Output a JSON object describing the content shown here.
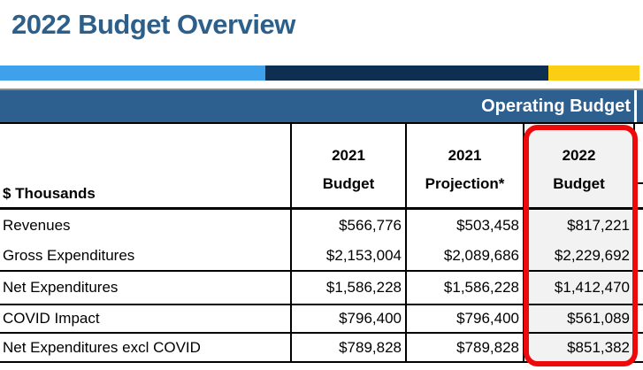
{
  "page": {
    "title": "2022 Budget Overview"
  },
  "colors": {
    "title_blue": "#2d5f8b",
    "section_bar_blue": "#2d608f",
    "stripe_light_blue": "#3fa1eb",
    "stripe_navy": "#0f2f52",
    "stripe_yellow": "#f9ce13",
    "highlight_red": "#ee0a0a",
    "highlight_column_bg": "#f2f2f2"
  },
  "table": {
    "section_header": "Operating Budget",
    "unit_label": "$ Thousands",
    "columns": [
      {
        "line1": "2021",
        "line2": "Budget"
      },
      {
        "line1": "2021",
        "line2": "Projection*"
      },
      {
        "line1": "2022",
        "line2": "Budget",
        "highlighted": true
      }
    ],
    "rows": [
      {
        "label": "Revenues",
        "values": [
          "$566,776",
          "$503,458",
          "$817,221"
        ]
      },
      {
        "label": "Gross Expenditures",
        "values": [
          "$2,153,004",
          "$2,089,686",
          "$2,229,692"
        ]
      },
      {
        "label": "Net Expenditures",
        "values": [
          "$1,586,228",
          "$1,586,228",
          "$1,412,470"
        ]
      },
      {
        "label": "COVID Impact",
        "values": [
          "$796,400",
          "$796,400",
          "$561,089"
        ]
      },
      {
        "label": "Net Expenditures excl COVID",
        "values": [
          "$789,828",
          "$789,828",
          "$851,382"
        ]
      }
    ]
  }
}
